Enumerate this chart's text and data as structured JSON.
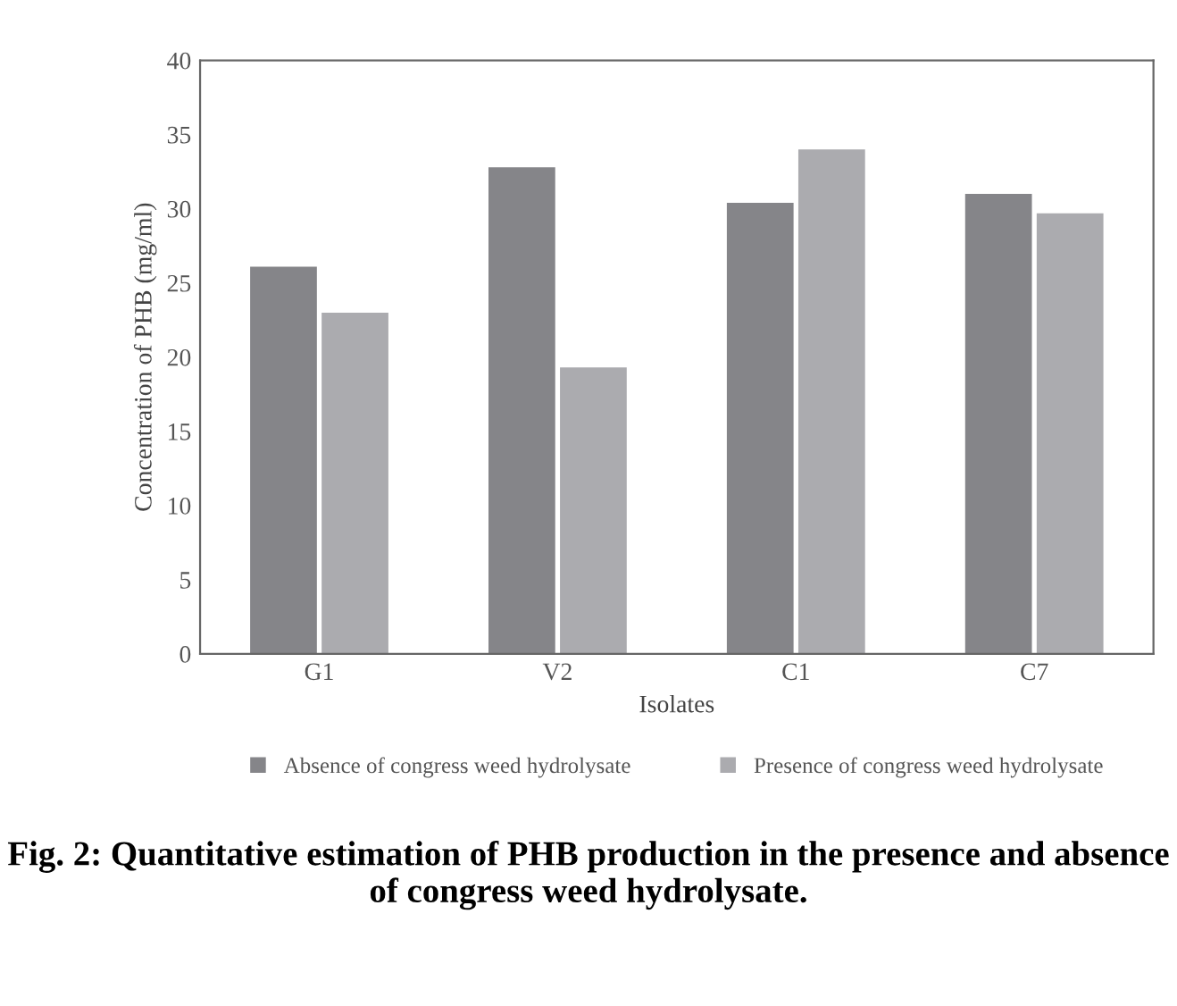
{
  "chart_data": {
    "type": "bar",
    "title": "Fig. 2: Quantitative estimation of PHB production in the presence and absence of congress weed hydrolysate.",
    "xlabel": "Isolates",
    "ylabel": "Concentration of PHB (mg/ml)",
    "categories": [
      "G1",
      "V2",
      "C1",
      "C7"
    ],
    "series": [
      {
        "name": "Absence of congress weed hydrolysate",
        "color": "#858589",
        "values": [
          26.1,
          32.8,
          30.4,
          31.0
        ]
      },
      {
        "name": "Presence of congress weed hydrolysate",
        "color": "#ababaf",
        "values": [
          23.0,
          19.3,
          34.0,
          29.7
        ]
      }
    ],
    "ylim": [
      0,
      40
    ],
    "yticks": [
      0,
      5,
      10,
      15,
      20,
      25,
      30,
      35,
      40
    ],
    "grid": false,
    "legend": "bottom"
  }
}
